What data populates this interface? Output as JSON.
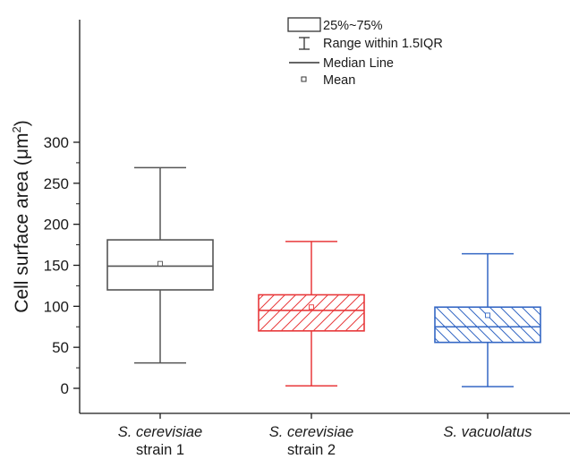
{
  "chart_data": {
    "type": "box",
    "ylabel": "Cell surface area (",
    "ylabel_unit": "μm",
    "ylabel_sup": "2",
    "ylabel_close": ")",
    "ylim": [
      -20,
      300
    ],
    "yticks": [
      0,
      50,
      100,
      150,
      200,
      250,
      300
    ],
    "yticks_labels": [
      "0",
      "50",
      "100",
      "150",
      "200",
      "250",
      "300"
    ],
    "minor_ticks": [
      25,
      75,
      125,
      175,
      225,
      275
    ],
    "categories": [
      {
        "line1": "S. cerevisiae",
        "line2": "strain 1"
      },
      {
        "line1": "S. cerevisiae",
        "line2": "strain 2"
      },
      {
        "line1": "S. vacuolatus",
        "line2": ""
      }
    ],
    "series": [
      {
        "whisker_low": 31,
        "q1": 120,
        "median": 149,
        "q3": 181,
        "whisker_high": 269,
        "mean": 152,
        "color": "#555555",
        "hatch": "none"
      },
      {
        "whisker_low": 3,
        "q1": 70,
        "median": 95,
        "q3": 114,
        "whisker_high": 179,
        "mean": 99,
        "color": "#e8393b",
        "hatch": "forward"
      },
      {
        "whisker_low": 2,
        "q1": 56,
        "median": 75,
        "q3": 99,
        "whisker_high": 164,
        "mean": 89,
        "color": "#3467c4",
        "hatch": "back"
      }
    ],
    "legend": {
      "position": "top-center",
      "items": [
        "25%~75%",
        "Range within 1.5IQR",
        "Median Line",
        "Mean"
      ]
    }
  }
}
